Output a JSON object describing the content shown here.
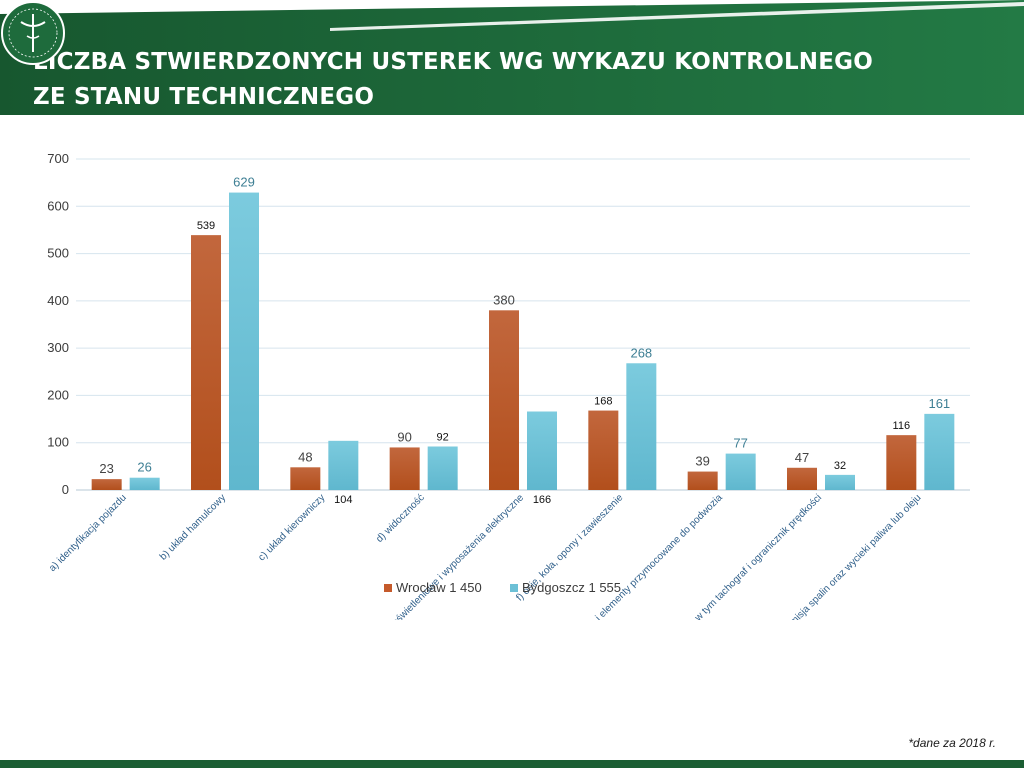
{
  "header": {
    "title_line1": "LICZBA STWIERDZONYCH USTEREK WG WYKAZU KONTROLNEGO",
    "title_line2": "ZE STANU TECHNICZNEGO",
    "logo_icon": "inspection-emblem-icon"
  },
  "colors": {
    "header_green": "#1e6b3c",
    "series_wroclaw": "#c55a2b",
    "series_bydgoszcz": "#6cc0d6"
  },
  "chart_data": {
    "type": "bar",
    "title": "LICZBA STWIERDZONYCH USTEREK WG WYKAZU KONTROLNEGO ZE STANU TECHNICZNEGO",
    "xlabel": "",
    "ylabel": "",
    "ylim": [
      0,
      700
    ],
    "yticks": [
      "0",
      "100",
      "200",
      "300",
      "400",
      "500",
      "600",
      "700"
    ],
    "grid": true,
    "legend_position": "bottom-center",
    "categories": [
      "a) identyfikacja pojazdu",
      "b) układ hamulcowy",
      "c) układ kierowniczy",
      "d) widoczność",
      "e) urządzenia oświetleniowe i wyposażenia elektryczne",
      "f) osie, koła, opony i zawieszenie",
      "g) podwozie i elementy przymocowane do podwozia",
      "h) inne wyposażenie, w tym tachograf i ogranicznik prędkości",
      "i) uciążliwość, w tym emisja spalin oraz wycieki paliwa lub oleju"
    ],
    "series": [
      {
        "name": "Wrocław 1 450",
        "values": [
          23,
          539,
          48,
          90,
          380,
          168,
          39,
          47,
          116
        ]
      },
      {
        "name": "Bydgoszcz 1 555",
        "values": [
          26,
          629,
          104,
          92,
          166,
          268,
          77,
          32,
          161
        ]
      }
    ],
    "data_labels": [
      [
        "23",
        "539",
        "48",
        "90",
        "380",
        "168",
        "39",
        "47",
        "116"
      ],
      [
        "26",
        "629",
        "104",
        "92",
        "166",
        "268",
        "77",
        "32",
        "161"
      ]
    ]
  },
  "footnote": "*dane za 2018 r."
}
